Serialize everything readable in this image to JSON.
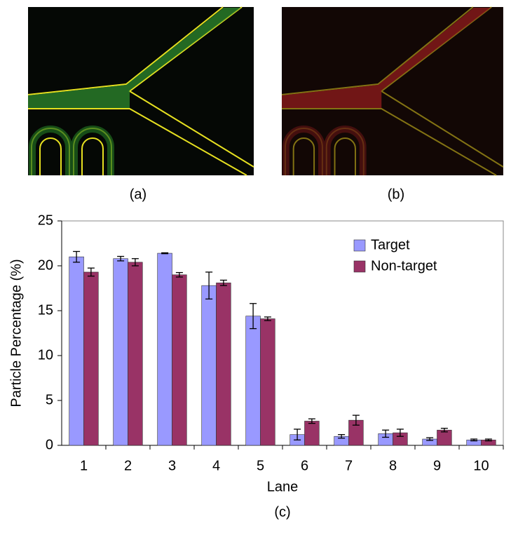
{
  "panels": {
    "a": "(a)",
    "b": "(b)"
  },
  "chart_data": {
    "type": "bar",
    "caption": "(c)",
    "x_label": "Lane",
    "y_label": "Particle Percentage (%)",
    "categories": [
      "1",
      "2",
      "3",
      "4",
      "5",
      "6",
      "7",
      "8",
      "9",
      "10"
    ],
    "series": [
      {
        "name": "Target",
        "color": "#9999ff",
        "values": [
          21.0,
          20.8,
          21.4,
          17.8,
          14.4,
          1.2,
          1.0,
          1.3,
          0.7,
          0.6
        ],
        "errors": [
          0.6,
          0.25,
          0.05,
          1.5,
          1.4,
          0.6,
          0.2,
          0.4,
          0.15,
          0.1
        ]
      },
      {
        "name": "Non-target",
        "color": "#993366",
        "values": [
          19.3,
          20.4,
          19.0,
          18.1,
          14.1,
          2.7,
          2.8,
          1.4,
          1.7,
          0.6
        ],
        "errors": [
          0.45,
          0.4,
          0.25,
          0.3,
          0.2,
          0.25,
          0.55,
          0.4,
          0.2,
          0.1
        ]
      }
    ],
    "ylim": [
      0,
      25
    ],
    "yticks": [
      0,
      5,
      10,
      15,
      20,
      25
    ],
    "legend": "upper right"
  }
}
